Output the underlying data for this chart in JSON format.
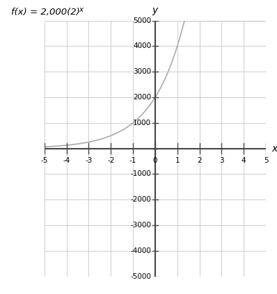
{
  "xlabel": "x",
  "ylabel": "y",
  "xlim": [
    -5,
    5
  ],
  "ylim": [
    -5000,
    5000
  ],
  "xticks": [
    -5,
    -4,
    -3,
    -2,
    -1,
    0,
    1,
    2,
    3,
    4,
    5
  ],
  "yticks": [
    -5000,
    -4000,
    -3000,
    -2000,
    -1000,
    0,
    1000,
    2000,
    3000,
    4000,
    5000
  ],
  "curve_color": "#aaaaaa",
  "background_color": "#ffffff",
  "grid_color": "#cccccc",
  "axis_color": "#444444",
  "a": 2000,
  "b": 2,
  "title_main": "f(x) = 2,000(2)",
  "title_sup": "x",
  "tick_fontsize": 7.5,
  "label_fontsize": 10
}
